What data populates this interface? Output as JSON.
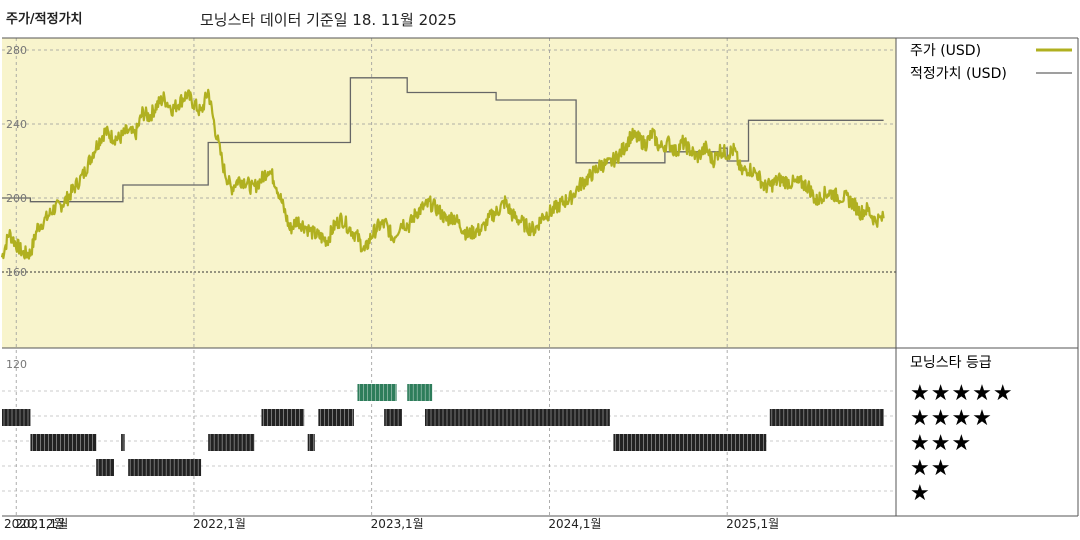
{
  "header": {
    "title": "주가/적정가치",
    "subtitle": "모닝스타 데이터 기준일 18. 11월 2025"
  },
  "legend": {
    "price_label": "주가 (USD)",
    "fair_value_label": "적정가치 (USD)",
    "price_color": "#b0b020",
    "fair_value_color": "#666666"
  },
  "rating_panel": {
    "title": "모닝스타 등급",
    "rows": [
      "★★★★★",
      "★★★★",
      "★★★",
      "★★",
      "★"
    ]
  },
  "chart_data": {
    "type": "line",
    "title": "주가/적정가치",
    "subtitle": "모닝스타 데이터 기준일 18. 11월 2025",
    "y_ticks": [
      120,
      160,
      200,
      240,
      280
    ],
    "ylim": [
      120,
      280
    ],
    "x_tick_labels": [
      "2020,12월",
      "2021,1월",
      "2022,1월",
      "2023,1월",
      "2024,1월",
      "2025,1월"
    ],
    "x_ticks": [
      2020.92,
      2021.0,
      2022.0,
      2023.0,
      2024.0,
      2025.0
    ],
    "xlim": [
      2020.92,
      2025.95
    ],
    "grid": true,
    "background_color": "#f8f4cc",
    "series": [
      {
        "name": "주가 (USD)",
        "color": "#b0b020",
        "x": [
          2020.92,
          2020.96,
          2021.0,
          2021.04,
          2021.08,
          2021.12,
          2021.17,
          2021.21,
          2021.25,
          2021.29,
          2021.33,
          2021.38,
          2021.42,
          2021.46,
          2021.5,
          2021.54,
          2021.58,
          2021.62,
          2021.67,
          2021.71,
          2021.75,
          2021.79,
          2021.83,
          2021.88,
          2021.92,
          2021.96,
          2022.0,
          2022.04,
          2022.08,
          2022.12,
          2022.17,
          2022.21,
          2022.25,
          2022.29,
          2022.33,
          2022.38,
          2022.42,
          2022.46,
          2022.5,
          2022.54,
          2022.58,
          2022.62,
          2022.67,
          2022.71,
          2022.75,
          2022.79,
          2022.83,
          2022.88,
          2022.92,
          2022.96,
          2023.0,
          2023.04,
          2023.08,
          2023.12,
          2023.17,
          2023.21,
          2023.25,
          2023.29,
          2023.33,
          2023.38,
          2023.42,
          2023.46,
          2023.5,
          2023.54,
          2023.58,
          2023.62,
          2023.67,
          2023.71,
          2023.75,
          2023.79,
          2023.83,
          2023.88,
          2023.92,
          2023.96,
          2024.0,
          2024.04,
          2024.08,
          2024.12,
          2024.17,
          2024.21,
          2024.25,
          2024.29,
          2024.33,
          2024.38,
          2024.42,
          2024.46,
          2024.5,
          2024.54,
          2024.58,
          2024.62,
          2024.67,
          2024.71,
          2024.75,
          2024.79,
          2024.83,
          2024.88,
          2024.92,
          2024.96,
          2025.0,
          2025.04,
          2025.08,
          2025.12,
          2025.17,
          2025.21,
          2025.25,
          2025.29,
          2025.33,
          2025.38,
          2025.42,
          2025.46,
          2025.5,
          2025.54,
          2025.58,
          2025.62,
          2025.67,
          2025.71,
          2025.75,
          2025.79,
          2025.83,
          2025.88
        ],
        "values": [
          168,
          181,
          175,
          170,
          170,
          184,
          189,
          194,
          196,
          200,
          206,
          213,
          222,
          230,
          236,
          233,
          232,
          236,
          234,
          246,
          244,
          250,
          254,
          248,
          252,
          256,
          251,
          246,
          258,
          237,
          215,
          205,
          210,
          209,
          205,
          210,
          216,
          208,
          196,
          183,
          188,
          185,
          181,
          179,
          177,
          185,
          189,
          183,
          179,
          171,
          180,
          185,
          186,
          178,
          187,
          185,
          192,
          195,
          197,
          193,
          188,
          190,
          185,
          180,
          182,
          183,
          190,
          193,
          198,
          191,
          188,
          184,
          183,
          190,
          192,
          195,
          198,
          200,
          207,
          210,
          214,
          218,
          218,
          222,
          227,
          234,
          232,
          229,
          235,
          227,
          230,
          225,
          230,
          226,
          222,
          227,
          220,
          226,
          224,
          226,
          214,
          216,
          213,
          206,
          207,
          210,
          209,
          208,
          208,
          206,
          198,
          202,
          203,
          201,
          200,
          197,
          192,
          194,
          188,
          189
        ]
      },
      {
        "name": "적정가치 (USD)",
        "color": "#666666",
        "type": "step",
        "x": [
          2020.92,
          2021.08,
          2021.5,
          2021.6,
          2022.08,
          2022.54,
          2022.88,
          2023.2,
          2023.7,
          2024.15,
          2024.5,
          2024.65,
          2024.96,
          2025.0,
          2025.12,
          2025.88
        ],
        "values": [
          200,
          198,
          198,
          207,
          230,
          230,
          265,
          257,
          253,
          219,
          219,
          225,
          227,
          220,
          242,
          242
        ]
      }
    ],
    "rating_bands": {
      "labels": [
        "★★★★★",
        "★★★★",
        "★★★",
        "★★",
        "★"
      ],
      "colors": [
        "#2e7d5b",
        "#222222",
        "#222222",
        "#222222",
        "#222222"
      ],
      "segments": [
        {
          "stars": 4,
          "from": 2020.92,
          "to": 2021.08
        },
        {
          "stars": 3,
          "from": 2021.08,
          "to": 2021.45
        },
        {
          "stars": 2,
          "from": 2021.45,
          "to": 2021.55
        },
        {
          "stars": 3,
          "from": 2021.59,
          "to": 2021.61
        },
        {
          "stars": 2,
          "from": 2021.63,
          "to": 2022.04
        },
        {
          "stars": 3,
          "from": 2022.08,
          "to": 2022.34
        },
        {
          "stars": 4,
          "from": 2022.38,
          "to": 2022.62
        },
        {
          "stars": 3,
          "from": 2022.64,
          "to": 2022.68
        },
        {
          "stars": 4,
          "from": 2022.7,
          "to": 2022.9
        },
        {
          "stars": 5,
          "from": 2022.92,
          "to": 2023.14
        },
        {
          "stars": 4,
          "from": 2023.07,
          "to": 2023.17
        },
        {
          "stars": 5,
          "from": 2023.2,
          "to": 2023.34
        },
        {
          "stars": 4,
          "from": 2023.3,
          "to": 2024.34
        },
        {
          "stars": 3,
          "from": 2024.36,
          "to": 2025.22
        },
        {
          "stars": 4,
          "from": 2025.24,
          "to": 2025.88
        }
      ]
    }
  }
}
